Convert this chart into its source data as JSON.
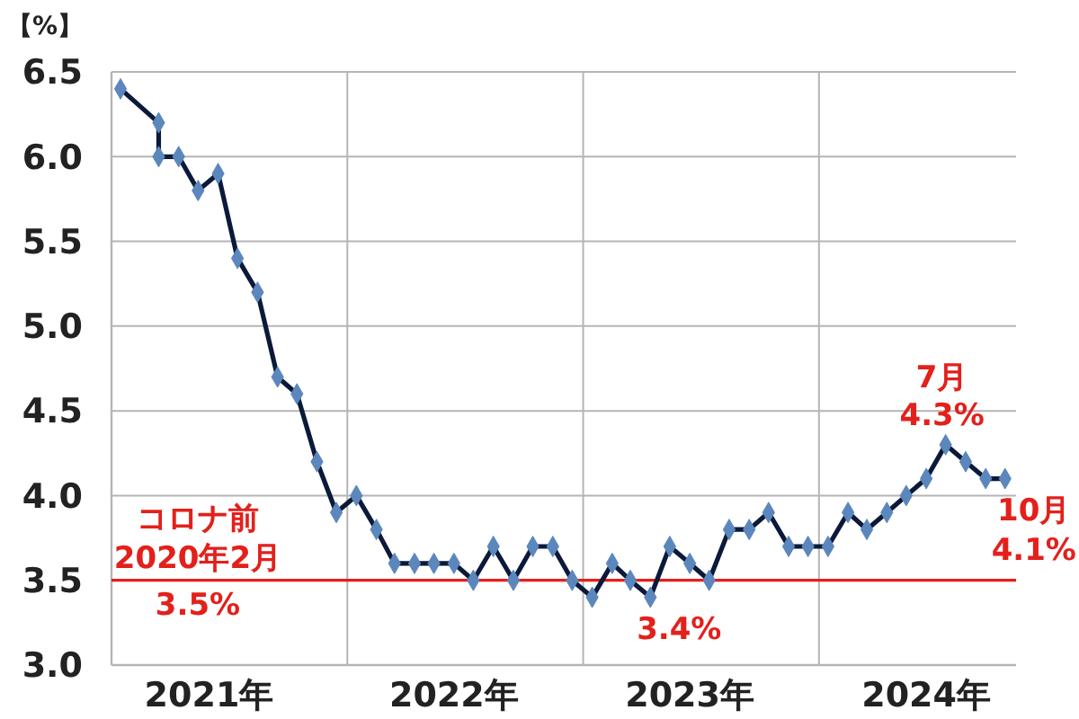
{
  "chart_data": {
    "type": "line",
    "ylabel": "【%】",
    "x": [
      "2021-01-15",
      "2021-03-15",
      "2021-03-15",
      "2021-04-15",
      "2021-05-15",
      "2021-06-15",
      "2021-07-15",
      "2021-08-15",
      "2021-09-15",
      "2021-10-15",
      "2021-11-15",
      "2021-12-15",
      "2022-01-15",
      "2022-02-15",
      "2022-03-15",
      "2022-04-15",
      "2022-05-15",
      "2022-06-15",
      "2022-07-15",
      "2022-08-15",
      "2022-09-15",
      "2022-10-15",
      "2022-11-15",
      "2022-12-15",
      "2023-01-15",
      "2023-02-15",
      "2023-03-15",
      "2023-04-15",
      "2023-05-15",
      "2023-06-15",
      "2023-07-15",
      "2023-08-15",
      "2023-09-15",
      "2023-10-15",
      "2023-11-15",
      "2023-12-15",
      "2024-01-15",
      "2024-02-15",
      "2024-03-15",
      "2024-04-15",
      "2024-05-15",
      "2024-06-15",
      "2024-07-15",
      "2024-08-15",
      "2024-09-15",
      "2024-10-15"
    ],
    "series": [
      {
        "color": "#0b1a3a",
        "values": [
          6.4,
          6.2,
          6.0,
          6.0,
          5.8,
          5.9,
          5.4,
          5.2,
          4.7,
          4.6,
          4.2,
          3.9,
          4.0,
          3.8,
          3.6,
          3.6,
          3.6,
          3.6,
          3.5,
          3.7,
          3.5,
          3.7,
          3.7,
          3.5,
          3.4,
          3.6,
          3.5,
          3.4,
          3.7,
          3.6,
          3.5,
          3.8,
          3.8,
          3.9,
          3.7,
          3.7,
          3.7,
          3.9,
          3.8,
          3.9,
          4.0,
          4.1,
          4.3,
          4.2,
          4.1,
          4.1
        ]
      }
    ],
    "xlim": [
      "2021-01-01",
      "2024-11-01"
    ],
    "xticks": [
      {
        "value": "2022-01-01",
        "label": null
      },
      {
        "value": "2023-01-01",
        "label": null
      },
      {
        "value": "2024-01-01",
        "label": null
      },
      {
        "value": "2021-06-01",
        "label": "2021年"
      },
      {
        "value": "2022-06-15",
        "label": "2022年"
      },
      {
        "value": "2023-06-15",
        "label": "2023年"
      },
      {
        "value": "2024-06-15",
        "label": "2024年"
      }
    ],
    "ylim": [
      3.0,
      6.5
    ],
    "yticks": [
      {
        "value": 3,
        "label": "3.0"
      },
      3.5,
      {
        "value": 4,
        "label": "4.0"
      },
      4.5,
      {
        "value": 5,
        "label": "5.0"
      },
      5.5,
      {
        "value": 6,
        "label": "6.0"
      },
      6.5
    ],
    "grid": true,
    "marker": "diamond",
    "line_style": "solid",
    "ref_lines": [
      {
        "axis": "y",
        "value": 3.5,
        "label": "コロナ前\n2020年2月\n3.5%",
        "color": "#e3201b"
      }
    ],
    "annotations": [
      {
        "text": "3.4%",
        "x": "2023-04-15",
        "y": 3.4
      },
      {
        "text": "7月\n4.3%",
        "x": "2024-07-15",
        "y": 4.3
      },
      {
        "text": "10月\n4.1%",
        "x": "2024-10-15",
        "y": 4.1
      }
    ]
  }
}
